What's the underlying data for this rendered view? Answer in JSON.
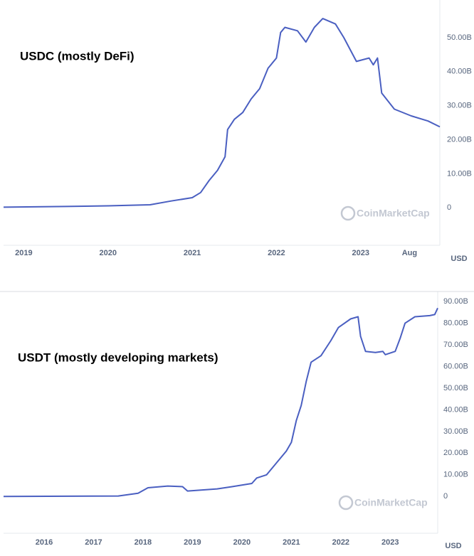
{
  "chart_data": [
    {
      "type": "line",
      "annotation": "USDC (mostly DeFi)",
      "watermark": "CoinMarketCap",
      "unit": "USD",
      "color": "#4a5fc1",
      "x": [
        2018.76,
        2019.5,
        2020.0,
        2020.5,
        2020.75,
        2021.0,
        2021.1,
        2021.2,
        2021.3,
        2021.39,
        2021.42,
        2021.5,
        2021.6,
        2021.7,
        2021.8,
        2021.9,
        2022.0,
        2022.05,
        2022.1,
        2022.25,
        2022.35,
        2022.45,
        2022.55,
        2022.7,
        2022.8,
        2022.95,
        2023.1,
        2023.15,
        2023.2,
        2023.25,
        2023.4,
        2023.6,
        2023.8,
        2023.94
      ],
      "values": [
        0.2,
        0.4,
        0.6,
        0.9,
        2.0,
        3.0,
        4.5,
        8,
        11,
        15,
        23,
        26,
        28,
        32,
        35,
        41,
        44,
        51.5,
        53,
        52,
        48.7,
        53,
        55.6,
        54,
        50,
        43,
        44,
        42,
        44,
        33.7,
        29,
        27,
        25.5,
        23.8
      ],
      "xlim": [
        2018.76,
        2023.94
      ],
      "xticks": [
        2019,
        2020,
        2021,
        2022,
        2023,
        {
          "value": 2023.58,
          "label": "Aug"
        }
      ],
      "ylim": [
        -11,
        60
      ],
      "yticks": [
        {
          "value": 0,
          "label": "0"
        },
        {
          "value": 10,
          "label": "10.00B"
        },
        {
          "value": 20,
          "label": "20.00B"
        },
        {
          "value": 30,
          "label": "30.00B"
        },
        {
          "value": 40,
          "label": "40.00B"
        },
        {
          "value": 50,
          "label": "50.00B"
        }
      ]
    },
    {
      "type": "line",
      "annotation": "USDT (mostly developing markets)",
      "watermark": "CoinMarketCap",
      "unit": "USD",
      "color": "#4a5fc1",
      "x": [
        2015.18,
        2017.5,
        2017.9,
        2018.1,
        2018.5,
        2018.8,
        2018.9,
        2019.5,
        2019.8,
        2020.2,
        2020.3,
        2020.5,
        2020.7,
        2020.9,
        2021.0,
        2021.1,
        2021.2,
        2021.3,
        2021.4,
        2021.6,
        2021.8,
        2021.95,
        2022.2,
        2022.35,
        2022.4,
        2022.5,
        2022.7,
        2022.85,
        2022.9,
        2023.1,
        2023.2,
        2023.3,
        2023.5,
        2023.8,
        2023.9,
        2023.96
      ],
      "values": [
        0,
        0.2,
        1.5,
        4,
        4.8,
        4.5,
        2.5,
        3.5,
        4.5,
        6,
        8.5,
        10,
        15.5,
        21,
        25,
        35,
        42,
        53,
        62,
        65,
        72,
        78,
        82,
        83,
        74,
        67,
        66.5,
        67,
        65.5,
        67,
        73,
        80,
        83,
        83.5,
        84,
        87
      ],
      "xlim": [
        2015.18,
        2023.96
      ],
      "xticks": [
        2016,
        2017,
        2018,
        2019,
        2020,
        2021,
        2022,
        2023
      ],
      "ylim": [
        -17,
        93
      ],
      "yticks": [
        {
          "value": 0,
          "label": "0"
        },
        {
          "value": 10,
          "label": "10.00B"
        },
        {
          "value": 20,
          "label": "20.00B"
        },
        {
          "value": 30,
          "label": "30.00B"
        },
        {
          "value": 40,
          "label": "40.00B"
        },
        {
          "value": 50,
          "label": "50.00B"
        },
        {
          "value": 60,
          "label": "60.00B"
        },
        {
          "value": 70,
          "label": "70.00B"
        },
        {
          "value": 80,
          "label": "80.00B"
        },
        {
          "value": 90,
          "label": "90.00B"
        }
      ]
    }
  ]
}
